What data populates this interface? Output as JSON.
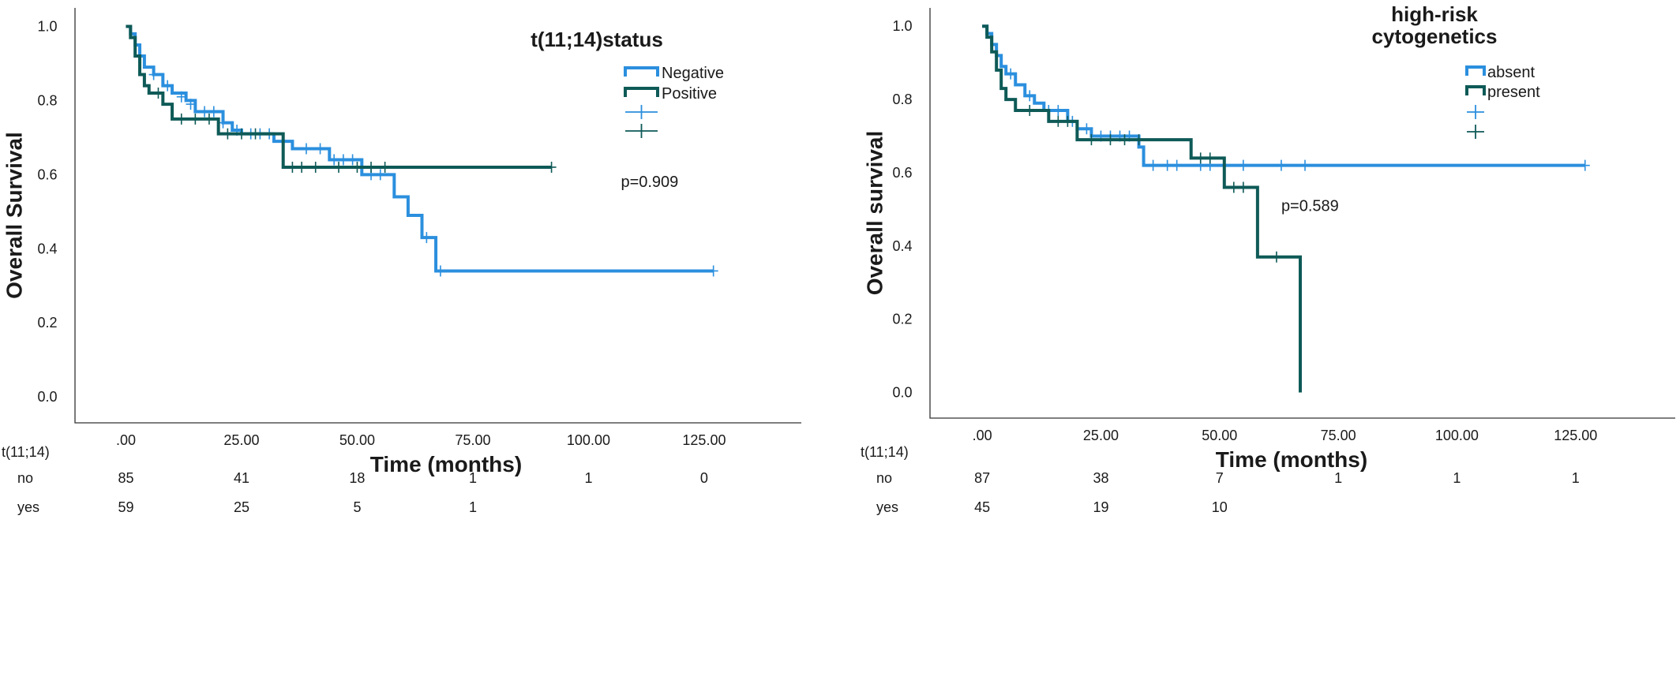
{
  "chart_data": [
    {
      "type": "line",
      "subtype": "kaplan-meier",
      "ylabel": "Overall Survival",
      "xlabel": "Time (months)",
      "xlim": [
        -11,
        146
      ],
      "ylim": [
        -0.07,
        1.05
      ],
      "x_ticks": [
        ".00",
        "25.00",
        "50.00",
        "75.00",
        "100.00",
        "125.00"
      ],
      "x_tick_values": [
        0,
        25,
        50,
        75,
        100,
        125
      ],
      "y_ticks": [
        "0.0",
        "0.2",
        "0.4",
        "0.6",
        "0.8",
        "1.0"
      ],
      "y_tick_values": [
        0,
        0.2,
        0.4,
        0.6,
        0.8,
        1.0
      ],
      "legend": {
        "title": "t(11;14)status",
        "placement": "top-right",
        "entries": [
          "Negative",
          "Positive"
        ]
      },
      "annotation": "p=0.909",
      "annotation_at": [
        107,
        0.582
      ],
      "series": [
        {
          "name": "Negative",
          "color": "#2b8fde",
          "steps": [
            [
              0,
              1.0
            ],
            [
              1,
              0.98
            ],
            [
              2,
              0.95
            ],
            [
              3,
              0.92
            ],
            [
              4,
              0.89
            ],
            [
              6,
              0.87
            ],
            [
              8,
              0.84
            ],
            [
              10,
              0.82
            ],
            [
              13,
              0.8
            ],
            [
              15,
              0.77
            ],
            [
              19,
              0.77
            ],
            [
              21,
              0.74
            ],
            [
              23,
              0.72
            ],
            [
              25,
              0.71
            ],
            [
              31,
              0.71
            ],
            [
              32,
              0.69
            ],
            [
              35,
              0.69
            ],
            [
              36,
              0.67
            ],
            [
              41,
              0.67
            ],
            [
              44,
              0.64
            ],
            [
              50,
              0.64
            ],
            [
              51,
              0.6
            ],
            [
              57,
              0.6
            ],
            [
              58,
              0.54
            ],
            [
              61,
              0.49
            ],
            [
              64,
              0.43
            ],
            [
              67,
              0.34
            ],
            [
              127,
              0.34
            ]
          ],
          "censored": [
            [
              6,
              0.87
            ],
            [
              9,
              0.84
            ],
            [
              12,
              0.81
            ],
            [
              14,
              0.79
            ],
            [
              17,
              0.77
            ],
            [
              19,
              0.77
            ],
            [
              21,
              0.74
            ],
            [
              24,
              0.72
            ],
            [
              27,
              0.71
            ],
            [
              29,
              0.71
            ],
            [
              31,
              0.71
            ],
            [
              34,
              0.69
            ],
            [
              39,
              0.67
            ],
            [
              42,
              0.67
            ],
            [
              45,
              0.64
            ],
            [
              47,
              0.64
            ],
            [
              49,
              0.64
            ],
            [
              53,
              0.6
            ],
            [
              55,
              0.6
            ],
            [
              65,
              0.43
            ],
            [
              68,
              0.34
            ],
            [
              127,
              0.34
            ]
          ]
        },
        {
          "name": "Positive",
          "color": "#0e5a57",
          "steps": [
            [
              0,
              1.0
            ],
            [
              1,
              0.97
            ],
            [
              2,
              0.92
            ],
            [
              3,
              0.87
            ],
            [
              4,
              0.84
            ],
            [
              5,
              0.82
            ],
            [
              8,
              0.79
            ],
            [
              10,
              0.75
            ],
            [
              19,
              0.75
            ],
            [
              20,
              0.71
            ],
            [
              33,
              0.71
            ],
            [
              34,
              0.62
            ],
            [
              92,
              0.62
            ]
          ],
          "censored": [
            [
              7,
              0.82
            ],
            [
              12,
              0.75
            ],
            [
              15,
              0.75
            ],
            [
              18,
              0.75
            ],
            [
              22,
              0.71
            ],
            [
              25,
              0.71
            ],
            [
              28,
              0.71
            ],
            [
              36,
              0.62
            ],
            [
              38,
              0.62
            ],
            [
              41,
              0.62
            ],
            [
              46,
              0.62
            ],
            [
              50,
              0.62
            ],
            [
              53,
              0.62
            ],
            [
              56,
              0.62
            ],
            [
              92,
              0.62
            ]
          ]
        }
      ],
      "risk_table": {
        "label": "t(11;14)",
        "rows": [
          {
            "label": "no",
            "values": [
              "85",
              "41",
              "18",
              "1",
              "1",
              "0"
            ]
          },
          {
            "label": "yes",
            "values": [
              "59",
              "25",
              "5",
              "1"
            ]
          }
        ]
      }
    },
    {
      "type": "line",
      "subtype": "kaplan-meier",
      "ylabel": "Overall survival",
      "xlabel": "Time (months)",
      "xlim": [
        -11,
        146
      ],
      "ylim": [
        -0.07,
        1.05
      ],
      "x_ticks": [
        ".00",
        "25.00",
        "50.00",
        "75.00",
        "100.00",
        "125.00"
      ],
      "x_tick_values": [
        0,
        25,
        50,
        75,
        100,
        125
      ],
      "y_ticks": [
        "0.0",
        "0.2",
        "0.4",
        "0.6",
        "0.8",
        "1.0"
      ],
      "y_tick_values": [
        0,
        0.2,
        0.4,
        0.6,
        0.8,
        1.0
      ],
      "legend": {
        "title": "high-risk\ncytogenetics",
        "placement": "top-right",
        "entries": [
          "absent",
          "present"
        ]
      },
      "annotation": "p=0.589",
      "annotation_at": [
        63,
        0.51
      ],
      "series": [
        {
          "name": "absent",
          "color": "#2b8fde",
          "steps": [
            [
              0,
              1.0
            ],
            [
              1,
              0.98
            ],
            [
              2,
              0.95
            ],
            [
              3,
              0.92
            ],
            [
              4,
              0.89
            ],
            [
              5,
              0.87
            ],
            [
              7,
              0.84
            ],
            [
              9,
              0.81
            ],
            [
              11,
              0.79
            ],
            [
              13,
              0.77
            ],
            [
              17,
              0.77
            ],
            [
              18,
              0.74
            ],
            [
              20,
              0.72
            ],
            [
              23,
              0.7
            ],
            [
              32,
              0.7
            ],
            [
              33,
              0.67
            ],
            [
              34,
              0.62
            ],
            [
              127,
              0.62
            ]
          ],
          "censored": [
            [
              6,
              0.87
            ],
            [
              10,
              0.81
            ],
            [
              14,
              0.77
            ],
            [
              16,
              0.77
            ],
            [
              19,
              0.74
            ],
            [
              22,
              0.72
            ],
            [
              25,
              0.7
            ],
            [
              27,
              0.7
            ],
            [
              29,
              0.7
            ],
            [
              31,
              0.7
            ],
            [
              36,
              0.62
            ],
            [
              39,
              0.62
            ],
            [
              41,
              0.62
            ],
            [
              46,
              0.62
            ],
            [
              48,
              0.62
            ],
            [
              55,
              0.62
            ],
            [
              63,
              0.62
            ],
            [
              68,
              0.62
            ],
            [
              127,
              0.62
            ]
          ]
        },
        {
          "name": "present",
          "color": "#0e5a57",
          "steps": [
            [
              0,
              1.0
            ],
            [
              1,
              0.97
            ],
            [
              2,
              0.93
            ],
            [
              3,
              0.88
            ],
            [
              4,
              0.83
            ],
            [
              5,
              0.8
            ],
            [
              7,
              0.77
            ],
            [
              13,
              0.77
            ],
            [
              14,
              0.74
            ],
            [
              19,
              0.74
            ],
            [
              20,
              0.69
            ],
            [
              43,
              0.69
            ],
            [
              44,
              0.64
            ],
            [
              50,
              0.64
            ],
            [
              51,
              0.56
            ],
            [
              57,
              0.56
            ],
            [
              58,
              0.37
            ],
            [
              67,
              0.37
            ],
            [
              67,
              0.0
            ]
          ],
          "censored": [
            [
              10,
              0.77
            ],
            [
              16,
              0.74
            ],
            [
              18,
              0.74
            ],
            [
              23,
              0.69
            ],
            [
              27,
              0.69
            ],
            [
              30,
              0.69
            ],
            [
              33,
              0.69
            ],
            [
              46,
              0.64
            ],
            [
              48,
              0.64
            ],
            [
              53,
              0.56
            ],
            [
              55,
              0.56
            ],
            [
              62,
              0.37
            ]
          ]
        }
      ],
      "risk_table": {
        "label": "t(11;14)",
        "rows": [
          {
            "label": "no",
            "values": [
              "87",
              "38",
              "7",
              "1",
              "1",
              "1"
            ]
          },
          {
            "label": "yes",
            "values": [
              "45",
              "19",
              "10"
            ]
          }
        ]
      }
    }
  ]
}
